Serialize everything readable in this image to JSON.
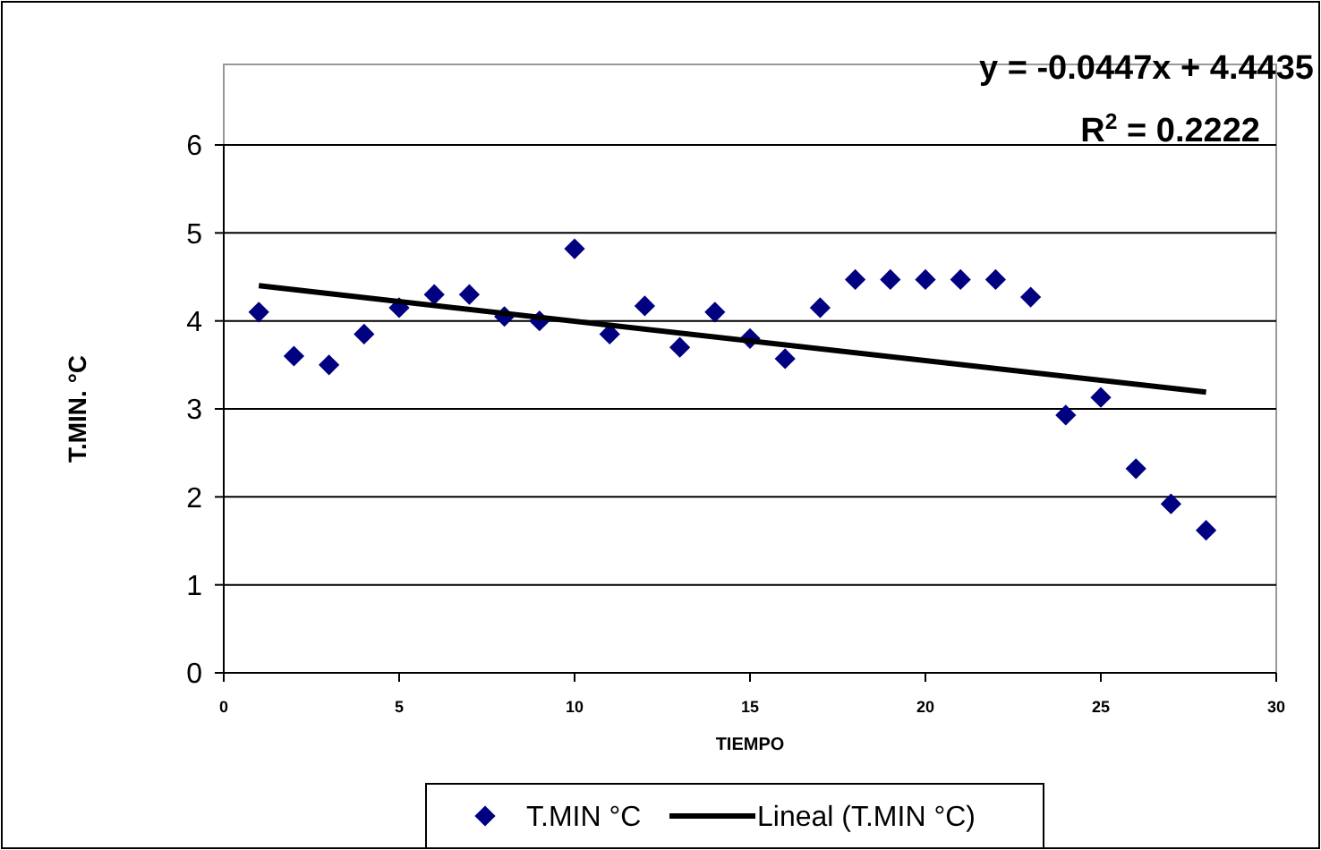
{
  "chart_data": {
    "type": "scatter",
    "xlabel": "TIEMPO",
    "ylabel": "T.MIN. °C",
    "annotations": [
      "y = -0.0447x + 4.4435",
      "R$^{2}$ = 0.2222"
    ],
    "xlim": [
      0,
      30
    ],
    "xticks": [
      0,
      5,
      10,
      15,
      20,
      25,
      30
    ],
    "ylim": [
      0,
      6
    ],
    "yticks": [
      0,
      1,
      2,
      3,
      4,
      5,
      6
    ],
    "grid": "y",
    "legend": "bottom",
    "series": [
      {
        "name": "T.MIN °C",
        "marker": "diamond",
        "color": "#000080",
        "x": [
          1,
          2,
          3,
          4,
          5,
          6,
          7,
          8,
          9,
          10,
          11,
          12,
          13,
          14,
          15,
          16,
          17,
          18,
          19,
          20,
          21,
          22,
          23,
          24,
          25,
          26,
          27,
          28
        ],
        "values": [
          4.1,
          3.6,
          3.5,
          3.85,
          4.15,
          4.3,
          4.3,
          4.05,
          4.0,
          4.82,
          3.85,
          4.17,
          3.7,
          4.1,
          3.8,
          3.57,
          4.15,
          4.47,
          4.47,
          4.47,
          4.47,
          4.47,
          4.27,
          2.93,
          3.13,
          2.32,
          1.92,
          1.62
        ]
      },
      {
        "name": "Lineal (T.MIN °C)",
        "type": "line",
        "color": "#000000",
        "line_style": "solid",
        "x": [
          1,
          28
        ],
        "values": [
          4.4,
          3.19
        ]
      }
    ]
  }
}
